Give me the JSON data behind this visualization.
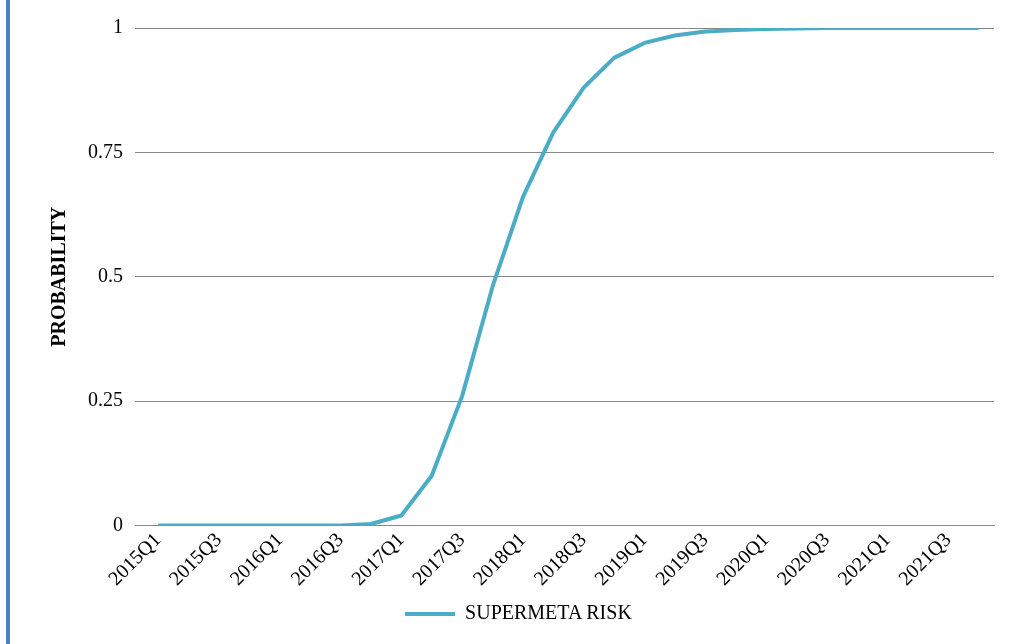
{
  "chart_data": {
    "type": "line",
    "ylabel": "PROBABILITY",
    "categories": [
      "2015Q1",
      null,
      "2015Q3",
      null,
      "2016Q1",
      null,
      "2016Q3",
      null,
      "2017Q1",
      null,
      "2017Q3",
      null,
      "2018Q1",
      null,
      "2018Q3",
      null,
      "2019Q1",
      null,
      "2019Q3",
      null,
      "2020Q1",
      null,
      "2020Q3",
      null,
      "2021Q1",
      null,
      "2021Q3",
      null
    ],
    "series": [
      {
        "name": "SUPERMETA RISK",
        "color": "#4bacc6",
        "values": [
          0,
          0,
          0,
          0,
          0,
          0,
          0,
          0.003,
          0.02,
          0.1,
          0.26,
          0.48,
          0.66,
          0.79,
          0.88,
          0.94,
          0.97,
          0.985,
          0.993,
          0.996,
          0.998,
          0.999,
          1,
          1,
          1,
          1,
          1,
          1
        ]
      }
    ],
    "ylim": [
      0,
      1
    ],
    "yticks": [
      0,
      0.25,
      0.5,
      0.75,
      1
    ],
    "grid": "y",
    "legend": "bottom",
    "marker": "none",
    "line_style": "solid"
  }
}
